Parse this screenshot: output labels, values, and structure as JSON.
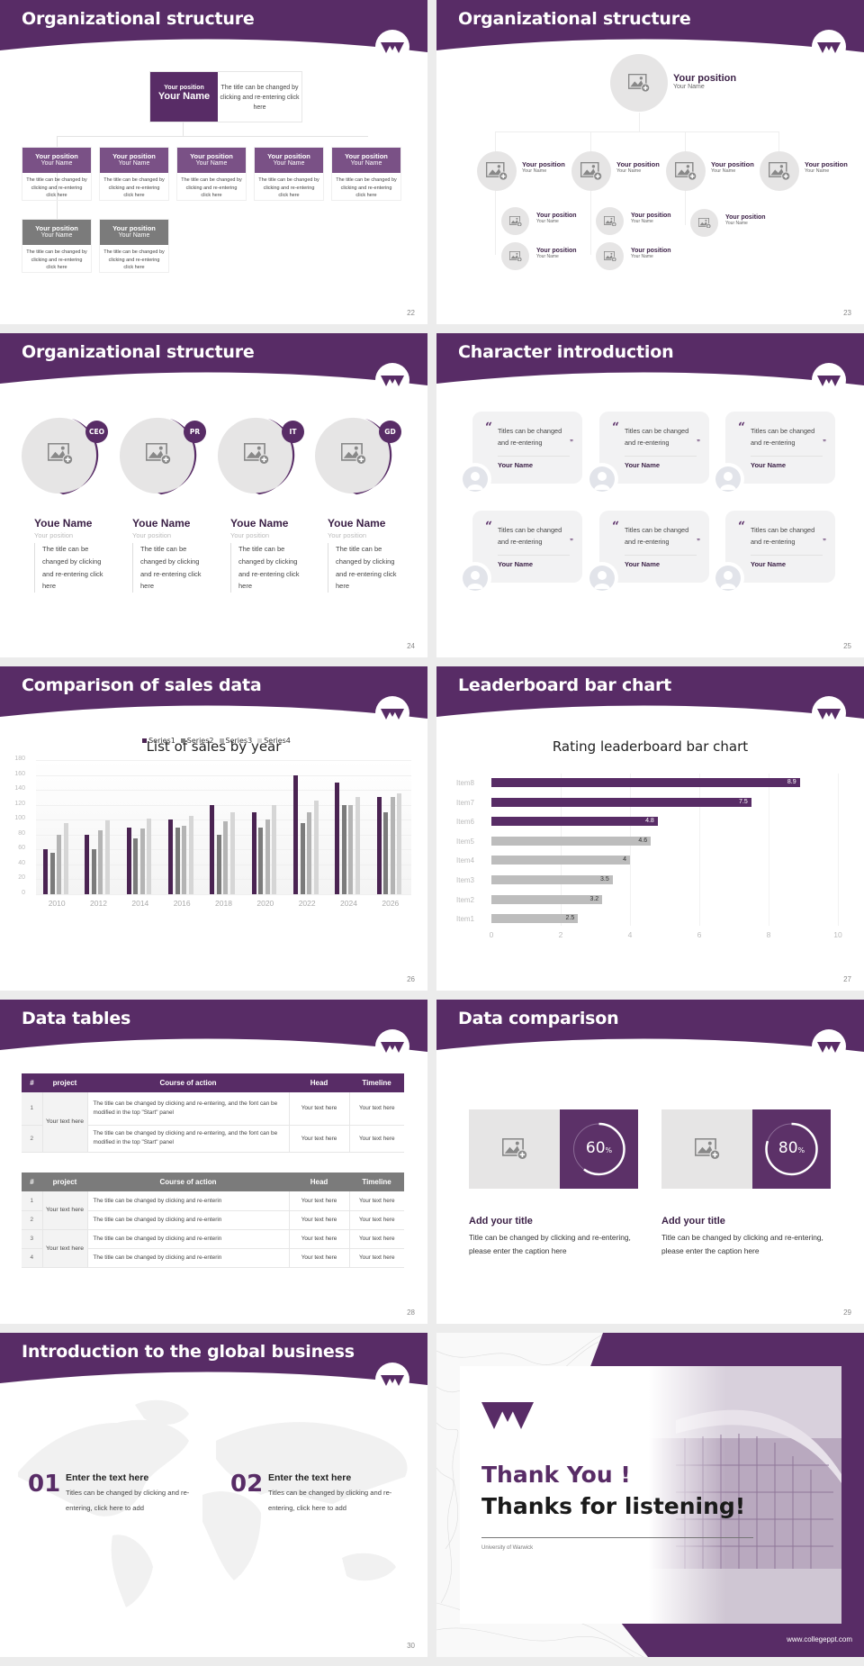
{
  "theme": {
    "accent": "#582c66",
    "accent_dark": "#3a1f45",
    "grey_box": "#7b7b7b",
    "placeholder_bg": "#e6e5e5"
  },
  "slides": {
    "s22": {
      "title": "Organizational structure",
      "page": "22",
      "top": {
        "position": "Your position",
        "name": "Your Name",
        "desc": "The title can be changed by clicking and re-entering click here"
      },
      "cards": [
        {
          "position": "Your position",
          "name": "Your Name",
          "desc": "The title can be changed by clicking and re-entering click here",
          "color": "#7a5186"
        },
        {
          "position": "Your position",
          "name": "Your Name",
          "desc": "The title can be changed by clicking and re-entering click here",
          "color": "#7a5186"
        },
        {
          "position": "Your position",
          "name": "Your Name",
          "desc": "The title can be changed by clicking and re-entering click here",
          "color": "#7a5186"
        },
        {
          "position": "Your position",
          "name": "Your Name",
          "desc": "The title can be changed by clicking and re-entering click here",
          "color": "#7a5186"
        },
        {
          "position": "Your position",
          "name": "Your Name",
          "desc": "The title can be changed by clicking and re-entering click here",
          "color": "#7a5186"
        },
        {
          "position": "Your position",
          "name": "Your Name",
          "desc": "The title can be changed by clicking and re-entering click here",
          "color": "#7b7b7b"
        },
        {
          "position": "Your position",
          "name": "Your Name",
          "desc": "The title can be changed by clicking and re-entering click here",
          "color": "#7b7b7b"
        }
      ]
    },
    "s23": {
      "title": "Organizational structure",
      "page": "23",
      "top": {
        "position": "Your position",
        "name": "Your Name"
      },
      "level2": [
        {
          "position": "Your position",
          "name": "Your Name"
        },
        {
          "position": "Your position",
          "name": "Your Name"
        },
        {
          "position": "Your position",
          "name": "Your Name"
        },
        {
          "position": "Your position",
          "name": "Your Name"
        }
      ],
      "level3": [
        {
          "position": "Your position",
          "name": "Your Name"
        },
        {
          "position": "Your position",
          "name": "Your Name"
        },
        {
          "position": "Your position",
          "name": "Your Name"
        },
        {
          "position": "Your position",
          "name": "Your Name"
        },
        {
          "position": "Your position",
          "name": "Your Name"
        }
      ]
    },
    "s24": {
      "title": "Organizational structure",
      "page": "24",
      "people": [
        {
          "tag": "CEO",
          "name": "Youe Name",
          "position": "Your position",
          "desc": "The title can be changed by clicking and re-entering click here"
        },
        {
          "tag": "PR",
          "name": "Youe Name",
          "position": "Your position",
          "desc": "The title can be changed by clicking and re-entering click here"
        },
        {
          "tag": "IT",
          "name": "Youe Name",
          "position": "Your position",
          "desc": "The title can be changed by clicking and re-entering click here"
        },
        {
          "tag": "GD",
          "name": "Youe Name",
          "position": "Your position",
          "desc": "The title can be changed by clicking and re-entering click here"
        }
      ]
    },
    "s25": {
      "title": "Character introduction",
      "page": "25",
      "quotes": [
        {
          "line1": "Titles can be changed",
          "line2": "and re-entering",
          "name": "Your Name"
        },
        {
          "line1": "Titles can be changed",
          "line2": "and re-entering",
          "name": "Your Name"
        },
        {
          "line1": "Titles can be changed",
          "line2": "and re-entering",
          "name": "Your Name"
        },
        {
          "line1": "Titles can be changed",
          "line2": "and re-entering",
          "name": "Your Name"
        },
        {
          "line1": "Titles can be changed",
          "line2": "and re-entering",
          "name": "Your Name"
        },
        {
          "line1": "Titles can be changed",
          "line2": "and re-entering",
          "name": "Your Name"
        }
      ],
      "open_quote": "“",
      "close_quote": "”"
    },
    "s26": {
      "title": "Comparison of sales data",
      "page": "26"
    },
    "s27": {
      "title": "Leaderboard bar chart",
      "page": "27"
    },
    "s28": {
      "title": "Data tables",
      "page": "28",
      "headers": [
        "#",
        "project",
        "Course of action",
        "Head",
        "Timeline"
      ],
      "table1": {
        "project_groups": [
          "Your text here"
        ],
        "rows": [
          {
            "num": "1",
            "action": "The title can be changed by clicking and re-entering, and the font can be modified in the top \"Start\" panel",
            "head": "Your text here",
            "timeline": "Your text here"
          },
          {
            "num": "2",
            "action": "The title can be changed by clicking and re-entering, and the font can be modified in the top \"Start\" panel",
            "head": "Your text here",
            "timeline": "Your text here"
          }
        ]
      },
      "table2": {
        "project_groups": [
          "Your text here",
          "Your text here"
        ],
        "rows": [
          {
            "num": "1",
            "action": "The title can be changed by clicking and re-enterin",
            "head": "Your text here",
            "timeline": "Your text here"
          },
          {
            "num": "2",
            "action": "The title can be changed by clicking and re-enterin",
            "head": "Your text here",
            "timeline": "Your text here"
          },
          {
            "num": "3",
            "action": "The title can be changed by clicking and re-enterin",
            "head": "Your text here",
            "timeline": "Your text here"
          },
          {
            "num": "4",
            "action": "The title can be changed by clicking and re-enterin",
            "head": "Your text here",
            "timeline": "Your text here"
          }
        ]
      }
    },
    "s29": {
      "title": "Data comparison",
      "page": "29",
      "items": [
        {
          "pct": "60",
          "unit": "%",
          "value": 60,
          "heading": "Add your title",
          "desc": "Title can be changed by clicking and re-entering, please enter the caption here"
        },
        {
          "pct": "80",
          "unit": "%",
          "value": 80,
          "heading": "Add your title",
          "desc": "Title can be changed by clicking and re-entering, please enter the caption here"
        }
      ]
    },
    "s30": {
      "title": "Introduction to the global business",
      "page": "30",
      "items": [
        {
          "num": "01",
          "heading": "Enter the text here",
          "desc": "Titles can be changed by clicking and re-entering, click here to add"
        },
        {
          "num": "02",
          "heading": "Enter the text here",
          "desc": "Titles can be changed by clicking and re-entering, click here to add"
        }
      ]
    },
    "s31": {
      "line1": "Thank You !",
      "line2": "Thanks for listening!",
      "university": "University of Warwick",
      "url": "www.collegeppt.com"
    }
  },
  "chart_data": [
    {
      "type": "bar",
      "title": "List of sales by year",
      "xlabel": "",
      "ylabel": "",
      "categories": [
        "2010",
        "2012",
        "2014",
        "2016",
        "2018",
        "2020",
        "2022",
        "2024",
        "2026"
      ],
      "series": [
        {
          "name": "Series1",
          "color": "#4a2352",
          "values": [
            60,
            80,
            90,
            100,
            120,
            110,
            160,
            150,
            130
          ]
        },
        {
          "name": "Series2",
          "color": "#7b7b7b",
          "values": [
            55,
            60,
            75,
            90,
            80,
            90,
            96,
            120,
            110
          ]
        },
        {
          "name": "Series3",
          "color": "#b4b4b4",
          "values": [
            80,
            86,
            88,
            92,
            98,
            100,
            110,
            120,
            130
          ]
        },
        {
          "name": "Series4",
          "color": "#d6d6d6",
          "values": [
            95,
            99,
            102,
            105,
            110,
            120,
            126,
            130,
            135
          ]
        }
      ],
      "ylim": [
        0,
        180
      ],
      "yticks": [
        0,
        20,
        40,
        60,
        80,
        100,
        120,
        140,
        160,
        180
      ],
      "grid": true,
      "legend_position": "top"
    },
    {
      "type": "bar",
      "orientation": "horizontal",
      "title": "Rating leaderboard bar chart",
      "categories": [
        "Item8",
        "Item7",
        "Item6",
        "Item5",
        "Item4",
        "Item3",
        "Item2",
        "Item1"
      ],
      "values": [
        8.9,
        7.5,
        4.8,
        4.6,
        4,
        3.5,
        3.2,
        2.5
      ],
      "labels": [
        "8.9",
        "7.5",
        "4.8",
        "4.6",
        "4",
        "3.5",
        "3.2",
        "2.5"
      ],
      "highlight_count": 3,
      "highlight_color": "#582c66",
      "base_color": "#bdbdbd",
      "xlim": [
        0,
        10
      ],
      "xticks": [
        0,
        2,
        4,
        6,
        8,
        10
      ],
      "grid": true
    }
  ]
}
